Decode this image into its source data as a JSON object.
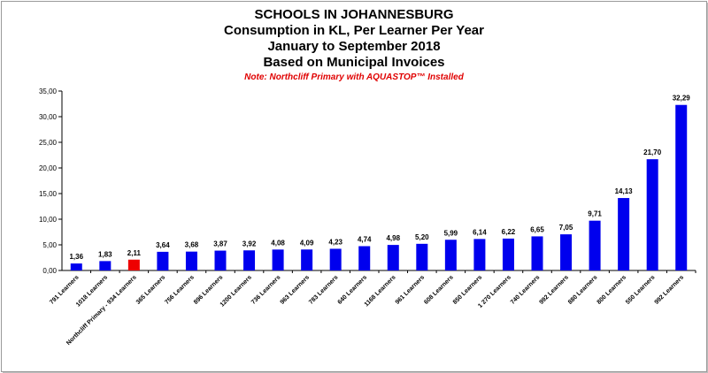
{
  "chart_data": {
    "type": "bar",
    "title_lines": [
      "SCHOOLS IN JOHANNESBURG",
      "Consumption in KL, Per Learner Per Year",
      "January to September 2018",
      "Based on Municipal Invoices"
    ],
    "note": "Note: Northcliff Primary with AQUASTOP™ Installed",
    "categories": [
      "791 Learners",
      "1018 Learners",
      "Northcliff Primary - 934 Learners",
      "365 Learners",
      "756 Learners",
      "896 Learners",
      "1200 Learners",
      "736 Learners",
      "963 Learners",
      "783 Learners",
      "640 Learners",
      "1168 Learners",
      "961 Learners",
      "608 Learners",
      "850 Learners",
      "1 270 Learners",
      "740 Learners",
      "992 Learners",
      "880 Learners",
      "800 Learners",
      "550 Learners",
      "992 Learners"
    ],
    "values": [
      1.36,
      1.83,
      2.11,
      3.64,
      3.68,
      3.87,
      3.92,
      4.08,
      4.09,
      4.23,
      4.74,
      4.98,
      5.2,
      5.99,
      6.14,
      6.22,
      6.65,
      7.05,
      9.71,
      14.13,
      21.7,
      32.29
    ],
    "value_labels": [
      "1,36",
      "1,83",
      "2,11",
      "3,64",
      "3,68",
      "3,87",
      "3,92",
      "4,08",
      "4,09",
      "4,23",
      "4,74",
      "4,98",
      "5,20",
      "5,99",
      "6,14",
      "6,22",
      "6,65",
      "7,05",
      "9,71",
      "14,13",
      "21,70",
      "32,29"
    ],
    "highlight_index": 2,
    "colors": {
      "bar": "#0000ee",
      "highlight": "#ee0000"
    },
    "ylim": [
      0,
      35
    ],
    "yticks": [
      0,
      5,
      10,
      15,
      20,
      25,
      30,
      35
    ],
    "ytick_labels": [
      "0,00",
      "5,00",
      "10,00",
      "15,00",
      "20,00",
      "25,00",
      "30,00",
      "35,00"
    ],
    "grid": false,
    "legend": "none"
  }
}
